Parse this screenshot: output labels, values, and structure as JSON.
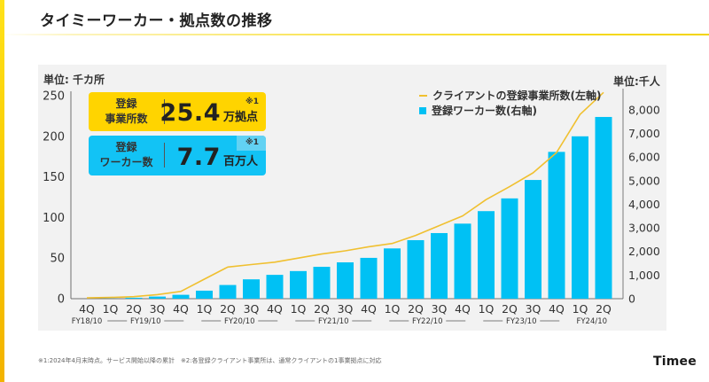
{
  "title": "タイミーワーカー・拠点数の推移",
  "colors": {
    "accent_yellow": "#ffd400",
    "accent_blue": "#12c3f5",
    "bar": "#00c1f4",
    "line": "#f0c030",
    "panel_bg": "#f2f2f2"
  },
  "kpi": {
    "offices": {
      "label_line1": "登録",
      "label_line2": "事業所数",
      "value": "25.4",
      "unit": "万拠点",
      "note": "※1"
    },
    "workers": {
      "label_line1": "登録",
      "label_line2": "ワーカー数",
      "value": "7.7",
      "unit": "百万人",
      "note": "※1"
    }
  },
  "footnote": "※1:2024年4月末時点。サービス開始以降の累計　※2:各登録クライアント事業所は、通常クライアントの1事業拠点に対応",
  "logo": "Timee",
  "chart_data": {
    "type": "bar",
    "title": "タイミーワーカー・拠点数の推移",
    "categories": [
      "4Q",
      "1Q",
      "2Q",
      "3Q",
      "4Q",
      "1Q",
      "2Q",
      "3Q",
      "4Q",
      "1Q",
      "2Q",
      "3Q",
      "4Q",
      "1Q",
      "2Q",
      "3Q",
      "4Q",
      "1Q",
      "2Q",
      "3Q",
      "4Q",
      "1Q",
      "2Q"
    ],
    "fiscal_year_groups": [
      {
        "label": "FY18/10",
        "start": 0,
        "count": 1
      },
      {
        "label": "FY19/10",
        "start": 1,
        "count": 4
      },
      {
        "label": "FY20/10",
        "start": 5,
        "count": 4
      },
      {
        "label": "FY21/10",
        "start": 9,
        "count": 4
      },
      {
        "label": "FY22/10",
        "start": 13,
        "count": 4
      },
      {
        "label": "FY23/10",
        "start": 17,
        "count": 4
      },
      {
        "label": "FY24/10",
        "start": 21,
        "count": 2
      }
    ],
    "series": [
      {
        "name": "クライアントの登録事業所数(左軸)",
        "type": "line",
        "axis": "left",
        "unit": "千カ所",
        "values": [
          1,
          1.5,
          2.5,
          5,
          9,
          24,
          39,
          42,
          45,
          50,
          55,
          59,
          64,
          68,
          78,
          90,
          102,
          122,
          138,
          155,
          180,
          227,
          254
        ]
      },
      {
        "name": "登録ワーカー数(右軸)",
        "type": "bar",
        "axis": "right",
        "unit": "千人",
        "values": [
          0,
          5,
          40,
          90,
          165,
          340,
          580,
          820,
          1010,
          1170,
          1350,
          1540,
          1730,
          2130,
          2480,
          2780,
          3180,
          3710,
          4250,
          5030,
          6220,
          6880,
          7700
        ]
      }
    ],
    "left_axis": {
      "label": "単位: 千カ所",
      "ylim": [
        0,
        250
      ],
      "ticks": [
        0,
        50,
        100,
        150,
        200,
        250
      ],
      "tick_labels": [
        "0",
        "50",
        "100",
        "150",
        "200",
        "250"
      ]
    },
    "right_axis": {
      "label": "単位:千人",
      "ylim": [
        0,
        8600
      ],
      "ticks": [
        0,
        1000,
        2000,
        3000,
        4000,
        5000,
        6000,
        7000,
        8000
      ],
      "tick_labels": [
        "0",
        "1,000",
        "2,000",
        "3,000",
        "4,000",
        "5,000",
        "6,000",
        "7,000",
        "8,000"
      ]
    },
    "xlabel": "",
    "grid": false,
    "legend": [
      "クライアントの登録事業所数(左軸)",
      "登録ワーカー数(右軸)"
    ],
    "legend_position": "top-right"
  }
}
